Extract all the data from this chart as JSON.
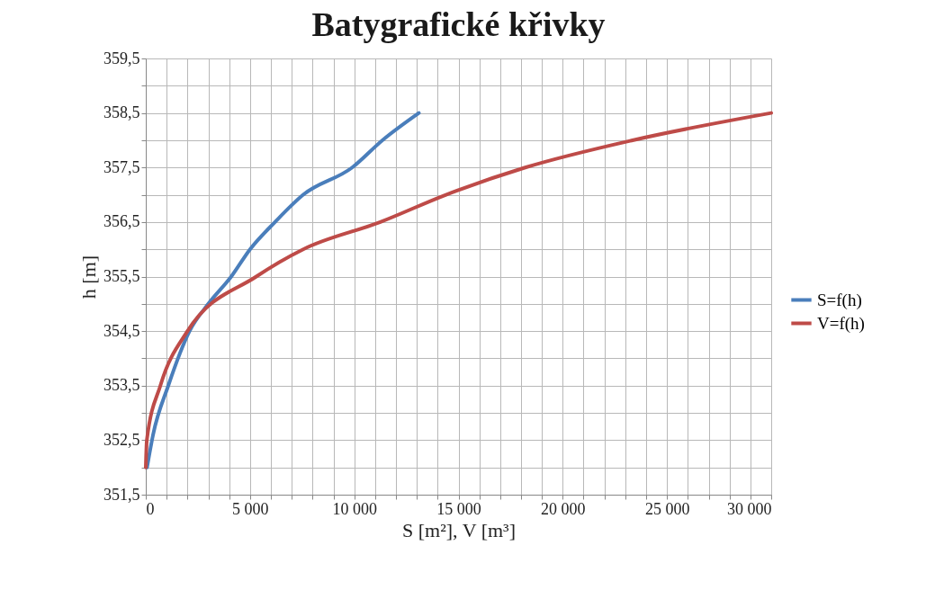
{
  "chart_data": {
    "type": "line",
    "title": "Batygrafické křivky",
    "xlabel": "S [m²], V [m³]",
    "ylabel": "h [m]",
    "xlim": [
      0,
      30000
    ],
    "xticks": [
      0,
      {
        "value": 1000,
        "label": null
      },
      {
        "value": 2000,
        "label": null
      },
      {
        "value": 3000,
        "label": null
      },
      {
        "value": 4000,
        "label": null
      },
      {
        "value": 5000,
        "label": "5 000"
      },
      {
        "value": 6000,
        "label": null
      },
      {
        "value": 7000,
        "label": null
      },
      {
        "value": 8000,
        "label": null
      },
      {
        "value": 9000,
        "label": null
      },
      {
        "value": 10000,
        "label": "10 000"
      },
      {
        "value": 11000,
        "label": null
      },
      {
        "value": 12000,
        "label": null
      },
      {
        "value": 13000,
        "label": null
      },
      {
        "value": 14000,
        "label": null
      },
      {
        "value": 15000,
        "label": "15 000"
      },
      {
        "value": 16000,
        "label": null
      },
      {
        "value": 17000,
        "label": null
      },
      {
        "value": 18000,
        "label": null
      },
      {
        "value": 19000,
        "label": null
      },
      {
        "value": 20000,
        "label": "20 000"
      },
      {
        "value": 21000,
        "label": null
      },
      {
        "value": 22000,
        "label": null
      },
      {
        "value": 23000,
        "label": null
      },
      {
        "value": 24000,
        "label": null
      },
      {
        "value": 25000,
        "label": "25 000"
      },
      {
        "value": 26000,
        "label": null
      },
      {
        "value": 27000,
        "label": null
      },
      {
        "value": 28000,
        "label": null
      },
      {
        "value": 29000,
        "label": null
      },
      {
        "value": 30000,
        "label": "30 000"
      }
    ],
    "ylim": [
      351.5,
      359.5
    ],
    "yticks": [
      {
        "value": 351.5,
        "label": "351,5"
      },
      {
        "value": 352,
        "label": null
      },
      {
        "value": 352.5,
        "label": "352,5"
      },
      {
        "value": 353,
        "label": null
      },
      {
        "value": 353.5,
        "label": "353,5"
      },
      {
        "value": 354,
        "label": null
      },
      {
        "value": 354.5,
        "label": "354,5"
      },
      {
        "value": 355,
        "label": null
      },
      {
        "value": 355.5,
        "label": "355,5"
      },
      {
        "value": 356,
        "label": null
      },
      {
        "value": 356.5,
        "label": "356,5"
      },
      {
        "value": 357,
        "label": null
      },
      {
        "value": 357.5,
        "label": "357,5"
      },
      {
        "value": 358,
        "label": null
      },
      {
        "value": 358.5,
        "label": "358,5"
      },
      {
        "value": 359,
        "label": null
      },
      {
        "value": 359.5,
        "label": "359,5"
      }
    ],
    "grid": true,
    "legend": "right",
    "marker": "none",
    "line_style": "solid",
    "series": [
      {
        "name": "S=f(h)",
        "color": "#4a7ebb",
        "x": [
          60,
          350,
          1080,
          2100,
          3000,
          4100,
          5000,
          6200,
          7550,
          9900,
          11350,
          13100
        ],
        "values": [
          352.0,
          352.6,
          353.5,
          354.5,
          355.0,
          355.5,
          356.0,
          356.5,
          357.0,
          357.5,
          358.0,
          358.5
        ]
      },
      {
        "name": "V=f(h)",
        "color": "#be4b48",
        "x": [
          0,
          50,
          700,
          2000,
          5300,
          7550,
          11250,
          14400,
          18200,
          23350,
          30000
        ],
        "values": [
          352.0,
          352.5,
          353.5,
          354.5,
          355.5,
          356.0,
          356.5,
          357.0,
          357.5,
          358.0,
          358.5
        ]
      }
    ]
  }
}
